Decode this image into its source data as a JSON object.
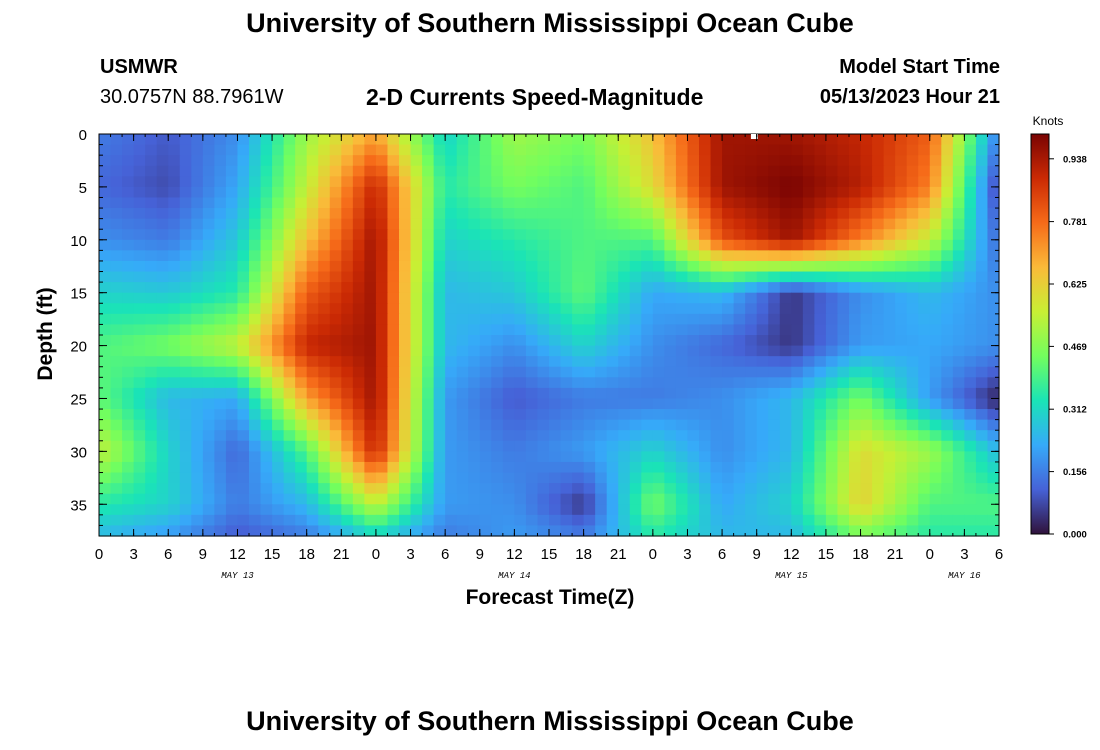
{
  "header": {
    "title": "University of Southern Mississippi Ocean Cube",
    "station_name": "USMWR",
    "coordinates": "30.0757N  88.7961W",
    "subtitle": "2-D Currents Speed-Magnitude",
    "model_start_label": "Model Start Time",
    "model_start_value": "05/13/2023 Hour 21"
  },
  "footer": {
    "title": "University of Southern Mississippi Ocean Cube"
  },
  "chart_data": {
    "type": "heatmap",
    "title": "2-D Currents Speed-Magnitude",
    "xlabel": "Forecast Time(Z)",
    "ylabel": "Depth (ft)",
    "x_range_hours": [
      0,
      78
    ],
    "y_range_ft": [
      0,
      38
    ],
    "y_inverted": true,
    "x_tick_labels": [
      "0",
      "3",
      "6",
      "9",
      "12",
      "15",
      "18",
      "21",
      "0",
      "3",
      "6",
      "9",
      "12",
      "15",
      "18",
      "21",
      "0",
      "3",
      "6",
      "9",
      "12",
      "15",
      "18",
      "21",
      "0",
      "3",
      "6"
    ],
    "y_tick_labels": [
      "0",
      "5",
      "10",
      "15",
      "20",
      "25",
      "30",
      "35"
    ],
    "date_labels": [
      {
        "label": "MAY 13",
        "x_hour": 12
      },
      {
        "label": "MAY 14",
        "x_hour": 36
      },
      {
        "label": "MAY 15",
        "x_hour": 60
      },
      {
        "label": "MAY 16",
        "x_hour": 75
      }
    ],
    "colorbar": {
      "title": "Knots",
      "tick_labels": [
        "0.000",
        "0.156",
        "0.312",
        "0.469",
        "0.625",
        "0.781",
        "0.938"
      ],
      "min": 0.0,
      "max": 1.0,
      "colors": [
        "#30123b",
        "#4662d7",
        "#36aaf9",
        "#1ae4b6",
        "#72fe5e",
        "#c8ef34",
        "#faba39",
        "#f66b19",
        "#cb2a04",
        "#7a0403"
      ]
    },
    "x_hours": [
      0,
      6,
      12,
      18,
      24,
      30,
      36,
      42,
      48,
      54,
      60,
      66,
      72,
      78
    ],
    "y_depths_ft": [
      0,
      5,
      10,
      15,
      20,
      25,
      30,
      35,
      38
    ],
    "speed_knots": [
      [
        0.15,
        0.1,
        0.18,
        0.5,
        0.7,
        0.3,
        0.5,
        0.45,
        0.65,
        0.95,
        0.95,
        0.9,
        0.8,
        0.15
      ],
      [
        0.12,
        0.08,
        0.22,
        0.55,
        0.9,
        0.35,
        0.45,
        0.4,
        0.6,
        0.95,
        1.0,
        0.92,
        0.75,
        0.05
      ],
      [
        0.18,
        0.15,
        0.28,
        0.65,
        0.95,
        0.3,
        0.35,
        0.4,
        0.4,
        0.82,
        0.95,
        0.75,
        0.55,
        0.12
      ],
      [
        0.3,
        0.28,
        0.35,
        0.8,
        0.95,
        0.25,
        0.28,
        0.42,
        0.22,
        0.25,
        0.05,
        0.18,
        0.25,
        0.18
      ],
      [
        0.4,
        0.45,
        0.55,
        0.9,
        0.95,
        0.25,
        0.18,
        0.3,
        0.18,
        0.12,
        0.05,
        0.2,
        0.22,
        0.18
      ],
      [
        0.42,
        0.25,
        0.22,
        0.7,
        0.95,
        0.2,
        0.1,
        0.15,
        0.15,
        0.18,
        0.25,
        0.45,
        0.2,
        0.02
      ],
      [
        0.55,
        0.3,
        0.12,
        0.4,
        0.9,
        0.2,
        0.15,
        0.2,
        0.3,
        0.18,
        0.25,
        0.6,
        0.5,
        0.25
      ],
      [
        0.35,
        0.3,
        0.15,
        0.25,
        0.55,
        0.2,
        0.18,
        0.05,
        0.45,
        0.22,
        0.3,
        0.62,
        0.4,
        0.4
      ],
      [
        0.25,
        0.2,
        0.1,
        0.15,
        0.3,
        0.15,
        0.2,
        0.15,
        0.35,
        0.25,
        0.25,
        0.45,
        0.35,
        0.35
      ]
    ]
  }
}
